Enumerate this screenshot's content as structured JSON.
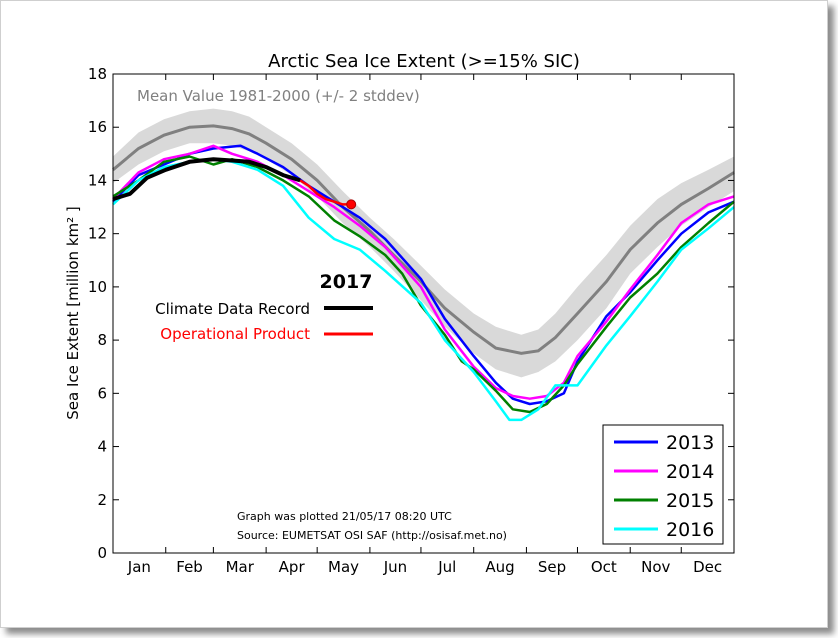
{
  "chart_data": {
    "type": "line",
    "title": "Arctic Sea Ice Extent (>=15% SIC)",
    "ylabel": "Sea Ice Extent [million km² ]",
    "xlabel": "",
    "ylim": [
      0,
      18
    ],
    "xlim": [
      0,
      365
    ],
    "yticks": [
      0,
      2,
      4,
      6,
      8,
      10,
      12,
      14,
      16,
      18
    ],
    "months": [
      "Jan",
      "Feb",
      "Mar",
      "Apr",
      "May",
      "Jun",
      "Jul",
      "Aug",
      "Sep",
      "Oct",
      "Nov",
      "Dec"
    ],
    "month_starts": [
      0,
      31,
      59,
      90,
      120,
      151,
      181,
      212,
      243,
      273,
      304,
      334,
      365
    ],
    "grid": false,
    "mean_label": "Mean Value 1981-2000 (+/- 2 stddev)",
    "inset_title": "2017",
    "inset_legend": [
      {
        "name": "Climate Data Record",
        "color": "#000000"
      },
      {
        "name": "Operational Product",
        "color": "#ff0000"
      }
    ],
    "legend_position": "bottom-right",
    "footnote": [
      "Graph was plotted 21/05/17 08:20 UTC",
      "Source: EUMETSAT OSI SAF (http://osisaf.met.no)"
    ],
    "mean": {
      "name": "Mean Value 1981-2000",
      "color": "#808080",
      "x": [
        0,
        15,
        30,
        45,
        59,
        70,
        80,
        90,
        105,
        120,
        135,
        151,
        165,
        181,
        195,
        212,
        225,
        240,
        250,
        260,
        273,
        290,
        304,
        320,
        334,
        350,
        365
      ],
      "values": [
        14.4,
        15.2,
        15.7,
        16.0,
        16.05,
        15.95,
        15.75,
        15.4,
        14.8,
        14.0,
        13.0,
        12.1,
        11.2,
        10.2,
        9.2,
        8.3,
        7.7,
        7.5,
        7.6,
        8.1,
        9.0,
        10.2,
        11.4,
        12.4,
        13.1,
        13.7,
        14.3
      ],
      "band_upper": [
        14.9,
        15.8,
        16.3,
        16.6,
        16.7,
        16.6,
        16.4,
        16.0,
        15.4,
        14.6,
        13.6,
        12.6,
        11.8,
        10.8,
        9.9,
        9.0,
        8.5,
        8.2,
        8.4,
        9.0,
        10.0,
        11.2,
        12.3,
        13.3,
        13.9,
        14.4,
        14.9
      ],
      "band_lower": [
        13.9,
        14.6,
        15.1,
        15.4,
        15.4,
        15.3,
        15.1,
        14.8,
        14.2,
        13.4,
        12.4,
        11.5,
        10.6,
        9.5,
        8.5,
        7.5,
        6.9,
        6.6,
        6.8,
        7.2,
        8.0,
        9.2,
        10.5,
        11.5,
        12.3,
        13.0,
        13.6
      ]
    },
    "series": [
      {
        "name": "2013",
        "color": "#0000ff",
        "x": [
          0,
          15,
          30,
          45,
          59,
          75,
          85,
          100,
          115,
          130,
          145,
          160,
          181,
          195,
          212,
          225,
          235,
          245,
          255,
          265,
          273,
          290,
          304,
          320,
          334,
          350,
          365
        ],
        "values": [
          13.2,
          14.2,
          14.6,
          15.0,
          15.2,
          15.3,
          15.0,
          14.5,
          13.8,
          13.2,
          12.6,
          11.8,
          10.3,
          8.8,
          7.4,
          6.4,
          5.8,
          5.6,
          5.7,
          6.0,
          7.2,
          8.9,
          9.8,
          11.0,
          12.0,
          12.8,
          13.2
        ]
      },
      {
        "name": "2014",
        "color": "#ff00ff",
        "x": [
          0,
          15,
          30,
          45,
          59,
          70,
          85,
          100,
          115,
          130,
          145,
          160,
          181,
          195,
          212,
          225,
          235,
          245,
          255,
          265,
          273,
          290,
          304,
          320,
          334,
          350,
          365
        ],
        "values": [
          13.3,
          14.3,
          14.8,
          15.0,
          15.3,
          15.0,
          14.7,
          14.2,
          13.6,
          13.0,
          12.3,
          11.5,
          10.0,
          8.4,
          7.0,
          6.2,
          5.9,
          5.8,
          5.9,
          6.4,
          7.4,
          8.7,
          9.9,
          11.2,
          12.4,
          13.1,
          13.4
        ]
      },
      {
        "name": "2015",
        "color": "#008000",
        "x": [
          0,
          15,
          30,
          45,
          59,
          70,
          85,
          100,
          115,
          130,
          145,
          160,
          170,
          181,
          195,
          205,
          212,
          225,
          235,
          245,
          255,
          265,
          273,
          290,
          304,
          320,
          334,
          350,
          365
        ],
        "values": [
          13.4,
          14.0,
          14.7,
          14.9,
          14.6,
          14.8,
          14.5,
          14.0,
          13.4,
          12.5,
          11.9,
          11.2,
          10.5,
          9.3,
          8.2,
          7.2,
          6.9,
          6.1,
          5.4,
          5.3,
          5.6,
          6.3,
          7.1,
          8.5,
          9.6,
          10.5,
          11.5,
          12.4,
          13.2
        ]
      },
      {
        "name": "2016",
        "color": "#00ffff",
        "x": [
          0,
          15,
          30,
          45,
          59,
          70,
          85,
          100,
          115,
          130,
          145,
          160,
          181,
          195,
          212,
          225,
          233,
          240,
          250,
          260,
          273,
          290,
          304,
          320,
          334,
          350,
          365
        ],
        "values": [
          13.1,
          14.0,
          14.5,
          14.7,
          14.8,
          14.7,
          14.4,
          13.8,
          12.6,
          11.8,
          11.4,
          10.6,
          9.4,
          8.0,
          6.8,
          5.7,
          5.0,
          5.0,
          5.4,
          6.3,
          6.3,
          7.8,
          8.9,
          10.2,
          11.4,
          12.2,
          13.0
        ]
      },
      {
        "name": "2017 Climate Data Record",
        "color": "#000000",
        "x": [
          0,
          10,
          20,
          31,
          45,
          59,
          70,
          80,
          90,
          100,
          110
        ],
        "values": [
          13.3,
          13.5,
          14.1,
          14.4,
          14.7,
          14.8,
          14.75,
          14.7,
          14.5,
          14.2,
          14.0
        ]
      },
      {
        "name": "2017 Operational Product",
        "color": "#ff0000",
        "x": [
          110,
          115,
          120,
          125,
          130,
          135,
          140
        ],
        "values": [
          14.0,
          13.8,
          13.5,
          13.3,
          13.2,
          13.1,
          13.1
        ]
      }
    ]
  }
}
